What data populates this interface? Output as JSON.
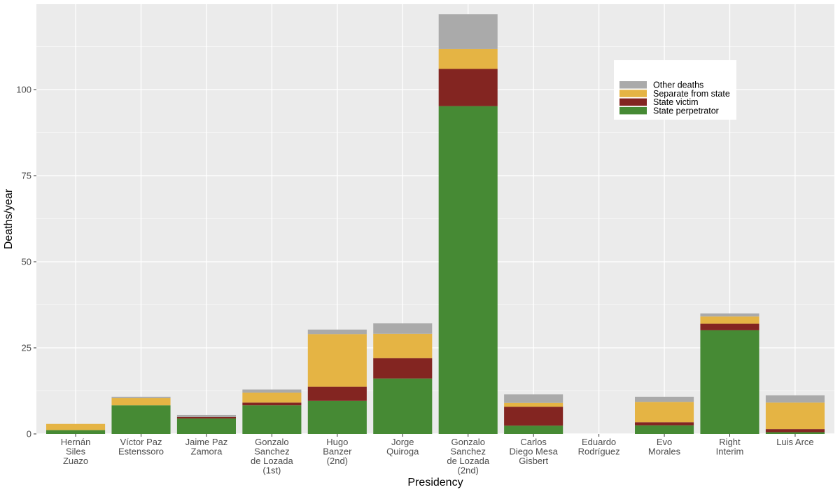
{
  "chart_data": {
    "type": "bar",
    "stacked": true,
    "title": "",
    "xlabel": "Presidency",
    "ylabel": "Deaths/year",
    "ylim": [
      0,
      125
    ],
    "yticks": [
      0,
      25,
      50,
      75,
      100
    ],
    "grid": true,
    "legend_position": "top-right",
    "categories": [
      [
        "Hernán",
        "Siles",
        "Zuazo"
      ],
      [
        "Víctor Paz",
        "Estenssoro"
      ],
      [
        "Jaime Paz",
        "Zamora"
      ],
      [
        "Gonzalo",
        "Sanchez",
        "de Lozada",
        "(1st)"
      ],
      [
        "Hugo",
        "Banzer",
        "(2nd)"
      ],
      [
        "Jorge",
        "Quiroga"
      ],
      [
        "Gonzalo",
        "Sanchez",
        "de Lozada",
        "(2nd)"
      ],
      [
        "Carlos",
        "Diego Mesa",
        "Gisbert"
      ],
      [
        "Eduardo",
        "Rodríguez"
      ],
      [
        "Evo",
        "Morales"
      ],
      [
        "Right",
        "Interim"
      ],
      [
        "Luis Arce"
      ]
    ],
    "series": [
      {
        "name": "State perpetrator",
        "color": "#468a34",
        "values": [
          1.1,
          8.3,
          4.5,
          8.3,
          9.6,
          16.1,
          95.2,
          2.4,
          0,
          2.5,
          30.1,
          0.5
        ]
      },
      {
        "name": "State victim",
        "color": "#832521",
        "values": [
          0,
          0,
          0.4,
          0.8,
          4.1,
          5.9,
          10.8,
          5.5,
          0,
          0.9,
          1.9,
          0.9
        ]
      },
      {
        "name": "Separate from state",
        "color": "#e5b444",
        "values": [
          1.8,
          2.1,
          0,
          2.9,
          15.3,
          7.1,
          5.8,
          1.1,
          0,
          5.9,
          2.1,
          7.7
        ]
      },
      {
        "name": "Other deaths",
        "color": "#aaaaaa",
        "values": [
          0,
          0.4,
          0.6,
          0.9,
          1.3,
          3.0,
          10.1,
          2.5,
          0,
          1.5,
          0.9,
          2.1
        ]
      }
    ],
    "legend_order": [
      "Other deaths",
      "Separate from state",
      "State victim",
      "State perpetrator"
    ]
  }
}
